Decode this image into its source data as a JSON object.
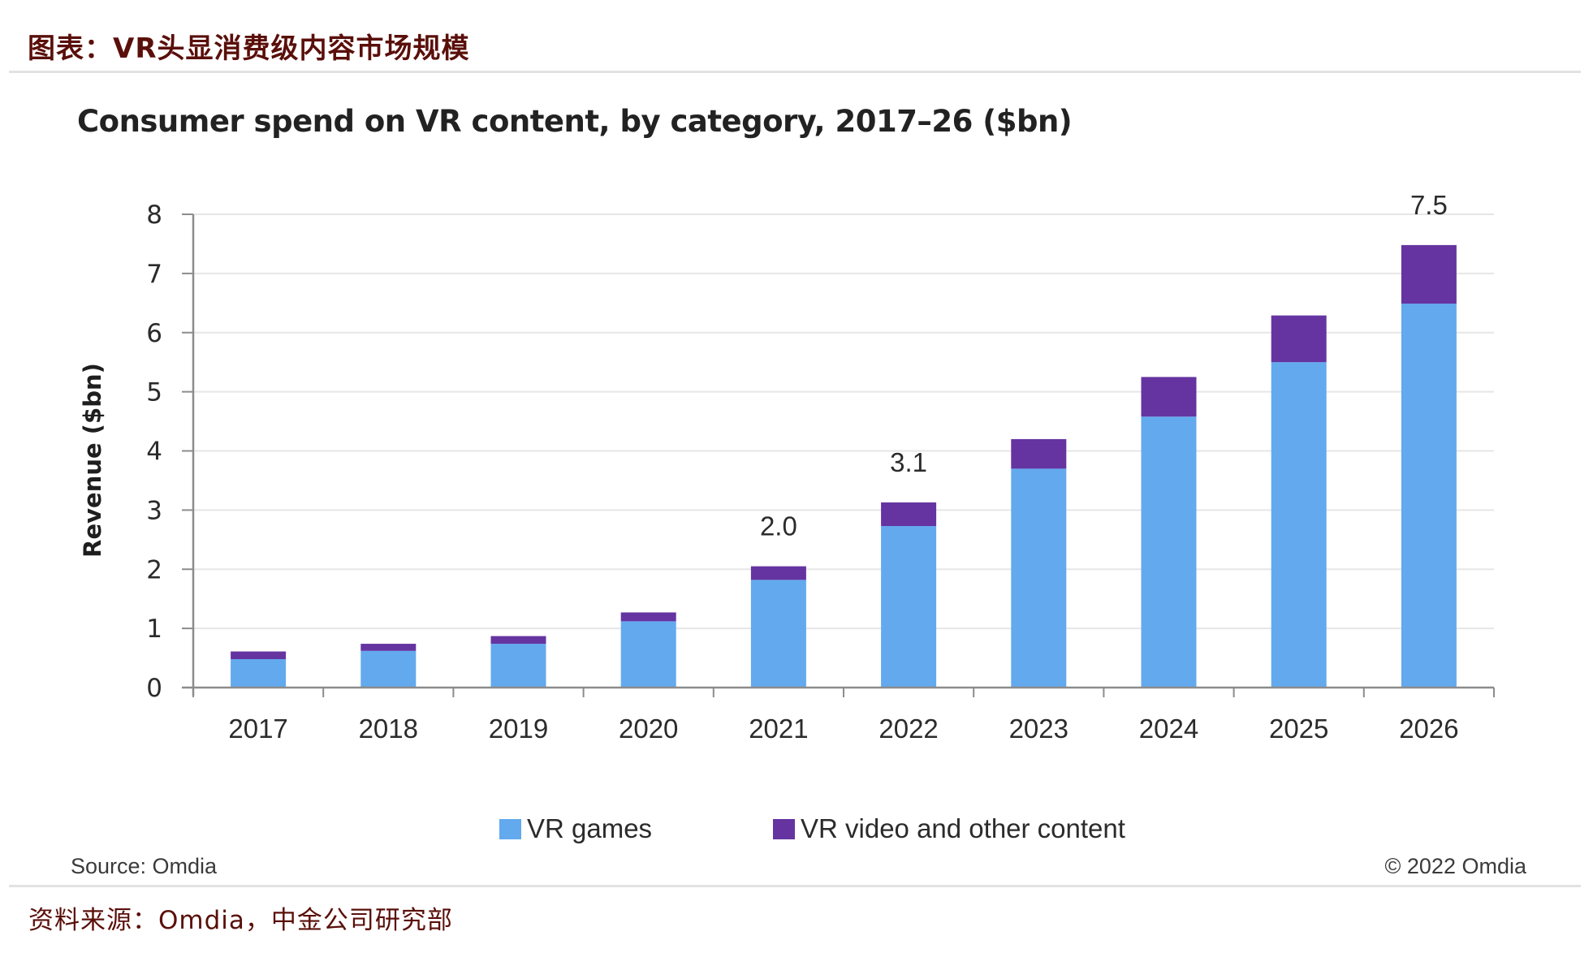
{
  "report": {
    "title": "图表：VR头显消费级内容市场规模",
    "footer_source": "资料来源：Omdia，中金公司研究部"
  },
  "chart_notes": {
    "source": "Source: Omdia",
    "copyright": "© 2022 Omdia"
  },
  "colors": {
    "vr_games": "#63a9ee",
    "vr_video": "#6534a1",
    "gridline": "#e6e6e6",
    "axis": "#8c8c8c"
  },
  "chart_data": {
    "type": "bar",
    "stacked": true,
    "title": "Consumer spend on VR content, by category, 2017–26 ($bn)",
    "xlabel": "",
    "ylabel": "Revenue ($bn)",
    "ylim": [
      0,
      8
    ],
    "yticks": [
      "0",
      "1",
      "2",
      "3",
      "4",
      "5",
      "6",
      "7",
      "8"
    ],
    "grid": true,
    "legend_position": "bottom",
    "categories": [
      "2017",
      "2018",
      "2019",
      "2020",
      "2021",
      "2022",
      "2023",
      "2024",
      "2025",
      "2026"
    ],
    "series": [
      {
        "name": "VR games",
        "color": "#63a9ee",
        "values": [
          0.48,
          0.62,
          0.74,
          1.12,
          1.82,
          2.73,
          3.7,
          4.58,
          5.5,
          6.49
        ]
      },
      {
        "name": "VR video and other content",
        "color": "#6534a1",
        "values": [
          0.13,
          0.12,
          0.13,
          0.15,
          0.23,
          0.4,
          0.5,
          0.67,
          0.79,
          0.99
        ]
      }
    ],
    "data_labels": [
      {
        "category": "2021",
        "text": "2.0"
      },
      {
        "category": "2022",
        "text": "3.1"
      },
      {
        "category": "2026",
        "text": "7.5"
      }
    ]
  }
}
